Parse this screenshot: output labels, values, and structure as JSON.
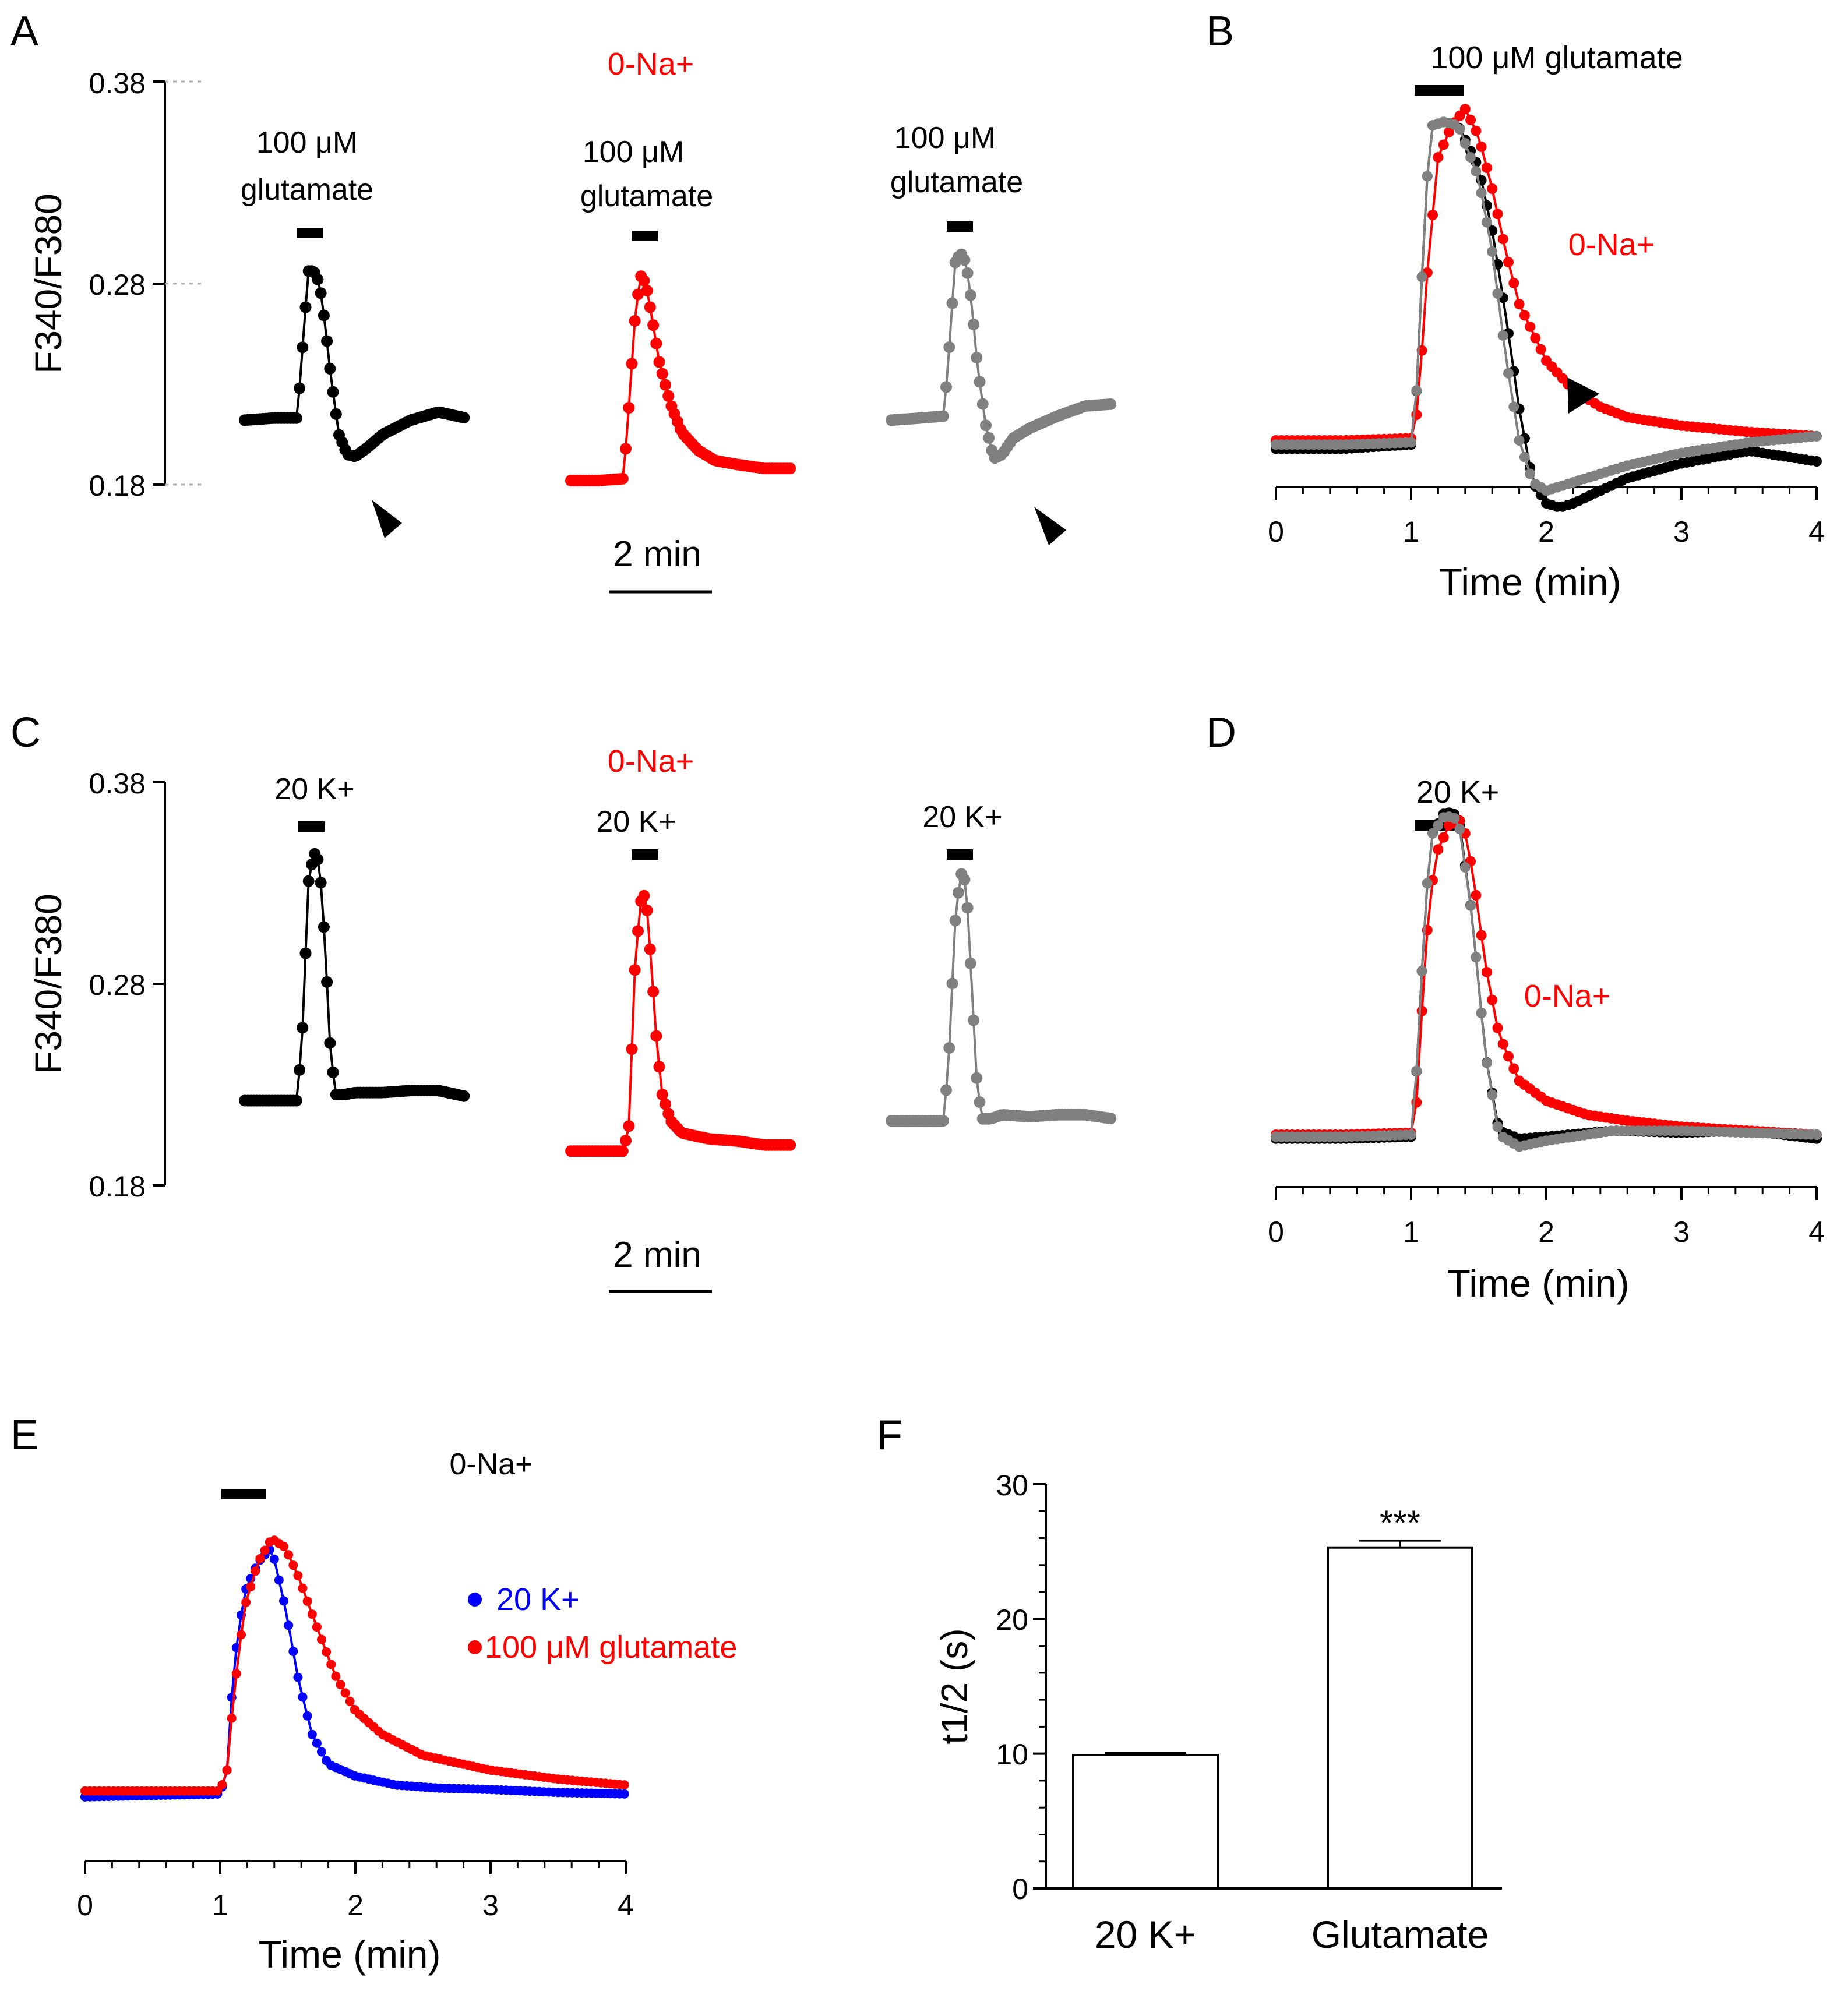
{
  "figure": {
    "colors": {
      "control": "#000000",
      "zero_na": "#ff0000",
      "wash": "#808080",
      "k20": "#0000ff",
      "annotation_red": "#ff0000"
    }
  },
  "panel_labels": {
    "A": "A",
    "B": "B",
    "C": "C",
    "D": "D",
    "E": "E",
    "F": "F"
  },
  "panel_A": {
    "ylabel": "F340/F380",
    "yticks": [
      "0.38",
      "0.28",
      "0.18"
    ],
    "condition_label": "0-Na+",
    "stim_label_1": "100 μM",
    "stim_label_2": "glutamate",
    "scalebar_label": "2 min"
  },
  "panel_B": {
    "stim_label": "100 μM glutamate",
    "condition_label": "0-Na+",
    "xlabel": "Time (min)",
    "xticks": [
      "0",
      "1",
      "2",
      "3",
      "4"
    ]
  },
  "panel_C": {
    "ylabel": "F340/F380",
    "yticks": [
      "0.38",
      "0.28",
      "0.18"
    ],
    "condition_label": "0-Na+",
    "stim_label": "20 K+",
    "scalebar_label": "2 min"
  },
  "panel_D": {
    "stim_label": "20 K+",
    "condition_label": "0-Na+",
    "xlabel": "Time (min)",
    "xticks": [
      "0",
      "1",
      "2",
      "3",
      "4"
    ]
  },
  "panel_E": {
    "condition_label": "0-Na+",
    "legend_k": "20 K+",
    "legend_glu": "100 μM glutamate",
    "xlabel": "Time (min)",
    "xticks": [
      "0",
      "1",
      "2",
      "3",
      "4"
    ]
  },
  "panel_F": {
    "ylabel": "t1/2 (s)",
    "yticks": [
      "0",
      "10",
      "20",
      "30"
    ],
    "significance": "***"
  },
  "chart_data": [
    {
      "panel": "A",
      "type": "line",
      "xlabel": "",
      "ylabel": "F340/F380",
      "ylim": [
        0.18,
        0.38
      ],
      "x_unit": "min",
      "series": [
        {
          "name": "",
          "color": "#000000",
          "x": [
            0,
            0.5,
            0.95,
            1.05,
            1.15,
            1.25,
            1.35,
            1.45,
            1.55,
            1.7,
            1.85,
            2.0,
            2.2,
            2.5,
            3.0,
            3.5,
            4.0
          ],
          "y": [
            0.212,
            0.213,
            0.213,
            0.25,
            0.286,
            0.286,
            0.28,
            0.26,
            0.235,
            0.205,
            0.195,
            0.194,
            0.198,
            0.205,
            0.212,
            0.216,
            0.213
          ]
        },
        {
          "name": "",
          "color": "#ff0000",
          "x": [
            0,
            0.5,
            0.95,
            1.05,
            1.15,
            1.25,
            1.35,
            1.45,
            1.6,
            1.8,
            2.0,
            2.3,
            2.6,
            3.0,
            3.5,
            4.0
          ],
          "y": [
            0.182,
            0.182,
            0.183,
            0.22,
            0.26,
            0.284,
            0.28,
            0.265,
            0.24,
            0.22,
            0.206,
            0.197,
            0.192,
            0.19,
            0.188,
            0.188
          ]
        },
        {
          "name": "",
          "color": "#808080",
          "x": [
            0,
            0.5,
            0.95,
            1.05,
            1.15,
            1.25,
            1.35,
            1.45,
            1.55,
            1.7,
            1.85,
            2.0,
            2.2,
            2.5,
            3.0,
            3.5,
            4.0
          ],
          "y": [
            0.212,
            0.213,
            0.214,
            0.25,
            0.29,
            0.295,
            0.29,
            0.27,
            0.24,
            0.21,
            0.193,
            0.195,
            0.203,
            0.208,
            0.214,
            0.219,
            0.22
          ]
        }
      ]
    },
    {
      "panel": "B",
      "type": "line",
      "xlabel": "Time (min)",
      "ylabel": "",
      "xlim": [
        0,
        4
      ],
      "xticks": [
        0,
        1,
        2,
        3,
        4
      ],
      "ylim": [
        0.18,
        0.38
      ],
      "series": [
        {
          "name": "",
          "color": "#000000",
          "x": [
            0,
            0.5,
            1.0,
            1.05,
            1.1,
            1.15,
            1.25,
            1.35,
            1.5,
            1.6,
            1.7,
            1.8,
            1.9,
            2.0,
            2.1,
            2.2,
            2.4,
            2.6,
            3.0,
            3.5,
            4.0
          ],
          "y": [
            0.216,
            0.216,
            0.218,
            0.25,
            0.33,
            0.37,
            0.372,
            0.37,
            0.35,
            0.32,
            0.28,
            0.235,
            0.2,
            0.19,
            0.188,
            0.19,
            0.196,
            0.202,
            0.209,
            0.215,
            0.21
          ]
        },
        {
          "name": "",
          "color": "#ff0000",
          "x": [
            0,
            0.5,
            1.0,
            1.05,
            1.12,
            1.2,
            1.3,
            1.4,
            1.5,
            1.6,
            1.7,
            1.8,
            2.0,
            2.2,
            2.4,
            2.6,
            3.0,
            3.5,
            4.0
          ],
          "y": [
            0.22,
            0.22,
            0.221,
            0.235,
            0.3,
            0.355,
            0.37,
            0.378,
            0.365,
            0.34,
            0.31,
            0.285,
            0.258,
            0.244,
            0.236,
            0.231,
            0.227,
            0.224,
            0.222
          ]
        },
        {
          "name": "",
          "color": "#808080",
          "x": [
            0,
            0.5,
            1.0,
            1.05,
            1.1,
            1.15,
            1.25,
            1.35,
            1.5,
            1.6,
            1.7,
            1.8,
            1.9,
            2.0,
            2.2,
            2.4,
            2.6,
            3.0,
            3.5,
            4.0
          ],
          "y": [
            0.218,
            0.218,
            0.219,
            0.25,
            0.33,
            0.37,
            0.372,
            0.37,
            0.345,
            0.31,
            0.26,
            0.22,
            0.2,
            0.196,
            0.2,
            0.204,
            0.208,
            0.214,
            0.219,
            0.222
          ]
        }
      ]
    },
    {
      "panel": "C",
      "type": "line",
      "xlabel": "",
      "ylabel": "F340/F380",
      "ylim": [
        0.18,
        0.38
      ],
      "x_unit": "min",
      "series": [
        {
          "name": "",
          "color": "#000000",
          "x": [
            0,
            0.5,
            0.95,
            1.05,
            1.15,
            1.25,
            1.35,
            1.45,
            1.55,
            1.65,
            1.8,
            2.0,
            2.5,
            3.0,
            3.5,
            4.0
          ],
          "y": [
            0.222,
            0.222,
            0.222,
            0.26,
            0.33,
            0.345,
            0.34,
            0.3,
            0.245,
            0.225,
            0.225,
            0.226,
            0.226,
            0.227,
            0.227,
            0.224
          ]
        },
        {
          "name": "",
          "color": "#ff0000",
          "x": [
            0,
            0.5,
            0.95,
            1.05,
            1.15,
            1.25,
            1.35,
            1.45,
            1.55,
            1.65,
            1.8,
            2.0,
            2.5,
            3.0,
            3.5,
            4.0
          ],
          "y": [
            0.197,
            0.197,
            0.197,
            0.21,
            0.285,
            0.32,
            0.325,
            0.29,
            0.25,
            0.225,
            0.212,
            0.206,
            0.203,
            0.202,
            0.2,
            0.2
          ]
        },
        {
          "name": "",
          "color": "#808080",
          "x": [
            0,
            0.5,
            0.95,
            1.05,
            1.15,
            1.25,
            1.35,
            1.45,
            1.55,
            1.65,
            1.8,
            2.0,
            2.5,
            3.0,
            3.5,
            4.0
          ],
          "y": [
            0.212,
            0.212,
            0.212,
            0.25,
            0.31,
            0.335,
            0.33,
            0.28,
            0.228,
            0.213,
            0.213,
            0.215,
            0.214,
            0.215,
            0.215,
            0.213
          ]
        }
      ]
    },
    {
      "panel": "D",
      "type": "line",
      "xlabel": "Time (min)",
      "ylabel": "",
      "xlim": [
        0,
        4
      ],
      "xticks": [
        0,
        1,
        2,
        3,
        4
      ],
      "ylim": [
        0.18,
        0.38
      ],
      "series": [
        {
          "name": "",
          "color": "#000000",
          "x": [
            0,
            0.5,
            1.0,
            1.05,
            1.1,
            1.15,
            1.25,
            1.35,
            1.45,
            1.55,
            1.65,
            1.8,
            2.0,
            2.5,
            3.0,
            3.5,
            4.0
          ],
          "y": [
            0.218,
            0.218,
            0.219,
            0.26,
            0.33,
            0.37,
            0.382,
            0.38,
            0.33,
            0.26,
            0.222,
            0.218,
            0.219,
            0.222,
            0.221,
            0.222,
            0.218
          ]
        },
        {
          "name": "",
          "color": "#ff0000",
          "x": [
            0,
            0.5,
            1.0,
            1.05,
            1.1,
            1.18,
            1.28,
            1.38,
            1.46,
            1.55,
            1.65,
            1.8,
            2.0,
            2.3,
            2.6,
            3.0,
            3.5,
            4.0
          ],
          "y": [
            0.22,
            0.22,
            0.221,
            0.24,
            0.31,
            0.36,
            0.375,
            0.378,
            0.35,
            0.305,
            0.27,
            0.247,
            0.237,
            0.23,
            0.227,
            0.224,
            0.222,
            0.22
          ]
        },
        {
          "name": "",
          "color": "#808080",
          "x": [
            0,
            0.5,
            1.0,
            1.05,
            1.1,
            1.15,
            1.25,
            1.35,
            1.45,
            1.55,
            1.65,
            1.8,
            2.0,
            2.5,
            3.0,
            3.5,
            4.0
          ],
          "y": [
            0.219,
            0.219,
            0.22,
            0.26,
            0.33,
            0.37,
            0.38,
            0.378,
            0.33,
            0.26,
            0.22,
            0.214,
            0.217,
            0.222,
            0.222,
            0.221,
            0.22
          ]
        }
      ]
    },
    {
      "panel": "E",
      "type": "line",
      "xlabel": "Time (min)",
      "ylabel": "",
      "xlim": [
        0,
        4
      ],
      "xticks": [
        0,
        1,
        2,
        3,
        4
      ],
      "ylim": [
        0,
        1
      ],
      "series": [
        {
          "name": "20 K+",
          "color": "#0000ff",
          "x": [
            0,
            0.5,
            1.0,
            1.05,
            1.1,
            1.18,
            1.28,
            1.38,
            1.48,
            1.58,
            1.68,
            1.8,
            2.0,
            2.3,
            2.6,
            3.0,
            3.5,
            4.0
          ],
          "y": [
            0.01,
            0.015,
            0.02,
            0.1,
            0.45,
            0.7,
            0.8,
            0.85,
            0.65,
            0.4,
            0.22,
            0.12,
            0.08,
            0.05,
            0.04,
            0.035,
            0.025,
            0.02
          ]
        },
        {
          "name": "100 μM glutamate",
          "color": "#ff0000",
          "x": [
            0,
            0.5,
            1.0,
            1.05,
            1.1,
            1.18,
            1.28,
            1.38,
            1.48,
            1.58,
            1.7,
            1.85,
            2.0,
            2.2,
            2.5,
            3.0,
            3.5,
            4.0
          ],
          "y": [
            0.03,
            0.03,
            0.03,
            0.1,
            0.35,
            0.65,
            0.8,
            0.88,
            0.85,
            0.75,
            0.6,
            0.42,
            0.3,
            0.22,
            0.15,
            0.1,
            0.07,
            0.05
          ]
        }
      ]
    },
    {
      "panel": "F",
      "type": "bar",
      "xlabel": "",
      "ylabel": "t1/2 (s)",
      "ylim": [
        0,
        30
      ],
      "yticks": [
        0,
        10,
        20,
        30
      ],
      "categories": [
        "20 K+",
        "Glutamate"
      ],
      "values": [
        9.9,
        25.3
      ],
      "errors": [
        0.15,
        0.5
      ]
    }
  ]
}
